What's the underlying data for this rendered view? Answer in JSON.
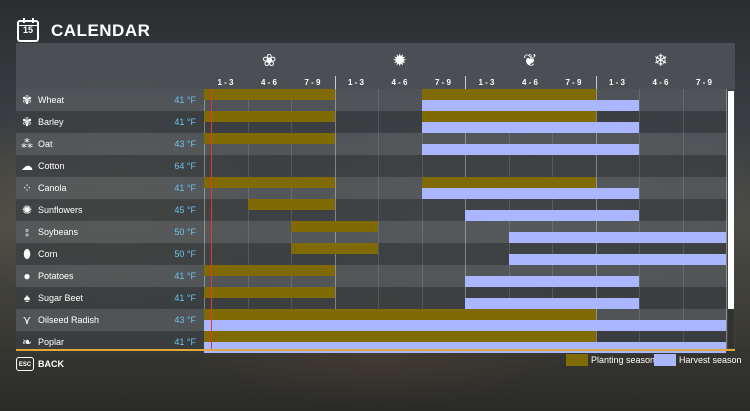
{
  "header": {
    "title": "CALENDAR",
    "calendar_day": "15"
  },
  "seasons": [
    {
      "name": "spring",
      "icon": "flower-icon",
      "glyph": "❀"
    },
    {
      "name": "summer",
      "icon": "sun-icon",
      "glyph": "✹"
    },
    {
      "name": "autumn",
      "icon": "leaf-icon",
      "glyph": "❦"
    },
    {
      "name": "winter",
      "icon": "snowflake-icon",
      "glyph": "❄"
    }
  ],
  "months": [
    "1 - 3",
    "4 - 6",
    "7 - 9",
    "1 - 3",
    "4 - 6",
    "7 - 9",
    "1 - 3",
    "4 - 6",
    "7 - 9",
    "1 - 3",
    "4 - 6",
    "7 - 9"
  ],
  "crops": [
    {
      "name": "Wheat",
      "temp": "41 °F",
      "icon": "wheat-icon",
      "glyph": "✾"
    },
    {
      "name": "Barley",
      "temp": "41 °F",
      "icon": "barley-icon",
      "glyph": "✾"
    },
    {
      "name": "Oat",
      "temp": "43 °F",
      "icon": "oat-icon",
      "glyph": "⁂"
    },
    {
      "name": "Cotton",
      "temp": "64 °F",
      "icon": "cotton-icon",
      "glyph": "☁"
    },
    {
      "name": "Canola",
      "temp": "41 °F",
      "icon": "canola-icon",
      "glyph": "⁘"
    },
    {
      "name": "Sunflowers",
      "temp": "45 °F",
      "icon": "sunflower-icon",
      "glyph": "✺"
    },
    {
      "name": "Soybeans",
      "temp": "50 °F",
      "icon": "soybean-icon",
      "glyph": "⦂"
    },
    {
      "name": "Corn",
      "temp": "50 °F",
      "icon": "corn-icon",
      "glyph": "⬮"
    },
    {
      "name": "Potatoes",
      "temp": "41 °F",
      "icon": "potato-icon",
      "glyph": "●"
    },
    {
      "name": "Sugar Beet",
      "temp": "41 °F",
      "icon": "sugar-beet-icon",
      "glyph": "♠"
    },
    {
      "name": "Oilseed Radish",
      "temp": "43 °F",
      "icon": "oilseed-radish-icon",
      "glyph": "⋎"
    },
    {
      "name": "Poplar",
      "temp": "41 °F",
      "icon": "poplar-icon",
      "glyph": "❧"
    }
  ],
  "chart_data": {
    "type": "gantt",
    "columns": [
      "1 - 3",
      "4 - 6",
      "7 - 9",
      "1 - 3",
      "4 - 6",
      "7 - 9",
      "1 - 3",
      "4 - 6",
      "7 - 9",
      "1 - 3",
      "4 - 6",
      "7 - 9"
    ],
    "rows": [
      {
        "crop": "Wheat",
        "planting": [
          [
            0,
            3
          ],
          [
            5,
            9
          ]
        ],
        "harvest": [
          [
            5,
            10
          ]
        ]
      },
      {
        "crop": "Barley",
        "planting": [
          [
            0,
            3
          ],
          [
            5,
            9
          ]
        ],
        "harvest": [
          [
            5,
            10
          ]
        ]
      },
      {
        "crop": "Oat",
        "planting": [
          [
            0,
            3
          ]
        ],
        "harvest": [
          [
            5,
            10
          ]
        ]
      },
      {
        "crop": "Cotton",
        "planting": [],
        "harvest": []
      },
      {
        "crop": "Canola",
        "planting": [
          [
            0,
            3
          ],
          [
            5,
            9
          ]
        ],
        "harvest": [
          [
            5,
            10
          ]
        ]
      },
      {
        "crop": "Sunflowers",
        "planting": [
          [
            1,
            3
          ]
        ],
        "harvest": [
          [
            6,
            10
          ]
        ]
      },
      {
        "crop": "Soybeans",
        "planting": [
          [
            2,
            4
          ]
        ],
        "harvest": [
          [
            7,
            12
          ]
        ]
      },
      {
        "crop": "Corn",
        "planting": [
          [
            2,
            4
          ]
        ],
        "harvest": [
          [
            7,
            12
          ]
        ]
      },
      {
        "crop": "Potatoes",
        "planting": [
          [
            0,
            3
          ]
        ],
        "harvest": [
          [
            6,
            10
          ]
        ]
      },
      {
        "crop": "Sugar Beet",
        "planting": [
          [
            0,
            3
          ]
        ],
        "harvest": [
          [
            6,
            10
          ]
        ]
      },
      {
        "crop": "Oilseed Radish",
        "planting": [
          [
            0,
            9
          ]
        ],
        "harvest": [
          [
            0,
            12
          ]
        ]
      },
      {
        "crop": "Poplar",
        "planting": [
          [
            0,
            9
          ]
        ],
        "harvest": [
          [
            0,
            12
          ]
        ]
      }
    ],
    "current_period": 0.05,
    "colors": {
      "planting": "#7f6a06",
      "harvest": "#aab6ff",
      "today": "#e03a2a",
      "temperature": "#6cc3f0",
      "accent": "#e0a93a"
    }
  },
  "footer": {
    "esc_key": "ESC",
    "back_label": "BACK",
    "legend": {
      "planting": "Planting season",
      "harvest": "Harvest season"
    }
  }
}
